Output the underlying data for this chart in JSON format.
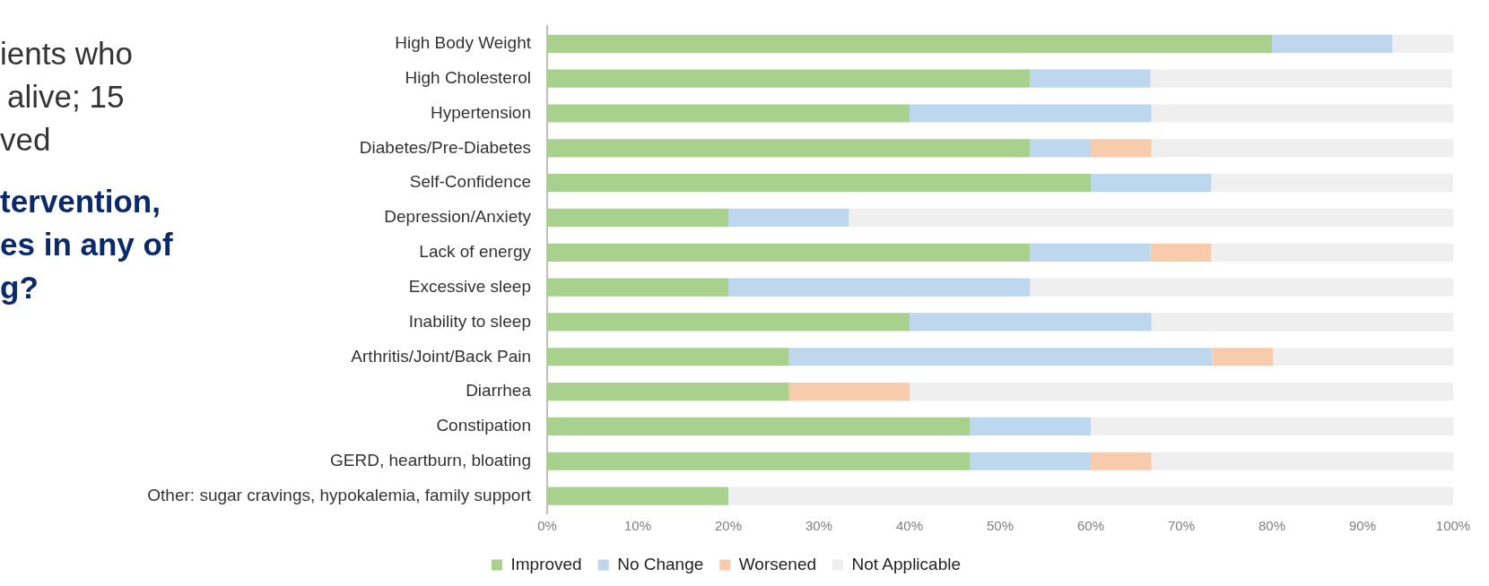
{
  "chart_data": {
    "type": "bar",
    "orientation": "horizontal",
    "stacked": true,
    "categories": [
      "High Body Weight",
      "High Cholesterol",
      "Hypertension",
      "Diabetes/Pre-Diabetes",
      "Self-Confidence",
      "Depression/Anxiety",
      "Lack of energy",
      "Excessive sleep",
      "Inability to sleep",
      "Arthritis/Joint/Back Pain",
      "Diarrhea",
      "Constipation",
      "GERD, heartburn, bloating",
      "Other: sugar cravings, hypokalemia, family support"
    ],
    "series": [
      {
        "name": "Improved",
        "color": "#a9d18e",
        "values": [
          80,
          53.3,
          40,
          53.3,
          60,
          20,
          53.3,
          20,
          40,
          26.7,
          26.7,
          46.7,
          46.7,
          20
        ]
      },
      {
        "name": "No Change",
        "color": "#bdd7ee",
        "values": [
          13.3,
          13.3,
          26.7,
          6.7,
          13.3,
          13.3,
          13.3,
          33.3,
          26.7,
          46.7,
          0,
          13.3,
          13.3,
          0
        ]
      },
      {
        "name": "Worsened",
        "color": "#f8cbad",
        "values": [
          0,
          0,
          0,
          6.7,
          0,
          0,
          6.7,
          0,
          0,
          6.7,
          13.3,
          0,
          6.7,
          0
        ]
      },
      {
        "name": "Not Applicable",
        "color": "#efefef",
        "values": [
          6.7,
          33.3,
          33.3,
          33.3,
          26.7,
          66.7,
          26.7,
          46.7,
          33.3,
          20,
          60,
          40,
          33.3,
          80
        ]
      }
    ],
    "xlim": [
      0,
      100
    ],
    "xticks": [
      {
        "value": 0,
        "label": "0%"
      },
      {
        "value": 10,
        "label": "10%"
      },
      {
        "value": 20,
        "label": "20%"
      },
      {
        "value": 30,
        "label": "30%"
      },
      {
        "value": 40,
        "label": "40%"
      },
      {
        "value": 50,
        "label": "50%"
      },
      {
        "value": 60,
        "label": "60%"
      },
      {
        "value": 70,
        "label": "70%"
      },
      {
        "value": 80,
        "label": "80%"
      },
      {
        "value": 90,
        "label": "90%"
      },
      {
        "value": 100,
        "label": "100%"
      }
    ],
    "grid": false,
    "legend": "bottom",
    "annotations": [
      "ients who",
      "alive; 15",
      "ved",
      "tervention,",
      "es in any of",
      "g?"
    ]
  }
}
